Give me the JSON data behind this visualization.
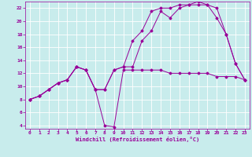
{
  "xlabel": "Windchill (Refroidissement éolien,°C)",
  "bg_color": "#c8ecec",
  "line_color": "#990099",
  "grid_color": "#ffffff",
  "xlim": [
    -0.5,
    23.5
  ],
  "ylim": [
    3.5,
    23.0
  ],
  "xticks": [
    0,
    1,
    2,
    3,
    4,
    5,
    6,
    7,
    8,
    9,
    10,
    11,
    12,
    13,
    14,
    15,
    16,
    17,
    18,
    19,
    20,
    21,
    22,
    23
  ],
  "yticks": [
    4,
    6,
    8,
    10,
    12,
    14,
    16,
    18,
    20,
    22
  ],
  "series": [
    {
      "x": [
        0,
        1,
        2,
        3,
        4,
        5,
        6,
        7,
        8,
        9,
        10,
        11,
        12,
        13,
        14,
        15,
        16,
        17,
        18,
        19,
        20,
        21,
        22,
        23
      ],
      "y": [
        8,
        8.5,
        9.5,
        10.5,
        11,
        13,
        12.5,
        9.5,
        4.0,
        3.8,
        12.5,
        12.5,
        12.5,
        12.5,
        12.5,
        12.0,
        12.0,
        12.0,
        12.0,
        12.0,
        11.5,
        11.5,
        11.5,
        11.0
      ]
    },
    {
      "x": [
        0,
        1,
        2,
        3,
        4,
        5,
        6,
        7,
        8,
        9,
        10,
        11,
        12,
        13,
        14,
        15,
        16,
        17,
        18,
        19,
        20,
        21,
        22,
        23
      ],
      "y": [
        8,
        8.5,
        9.5,
        10.5,
        11,
        13,
        12.5,
        9.5,
        9.5,
        12.5,
        13.0,
        17.0,
        18.5,
        21.5,
        22.0,
        22.0,
        22.5,
        22.5,
        23.0,
        22.5,
        22.0,
        18.0,
        13.5,
        11.0
      ]
    },
    {
      "x": [
        0,
        1,
        2,
        3,
        4,
        5,
        6,
        7,
        8,
        9,
        10,
        11,
        12,
        13,
        14,
        15,
        16,
        17,
        18,
        19,
        20,
        21,
        22,
        23
      ],
      "y": [
        8,
        8.5,
        9.5,
        10.5,
        11,
        13,
        12.5,
        9.5,
        9.5,
        12.5,
        13.0,
        13.0,
        17.0,
        18.5,
        21.5,
        20.5,
        22.0,
        22.5,
        22.5,
        22.5,
        20.5,
        18.0,
        13.5,
        11.0
      ]
    }
  ]
}
